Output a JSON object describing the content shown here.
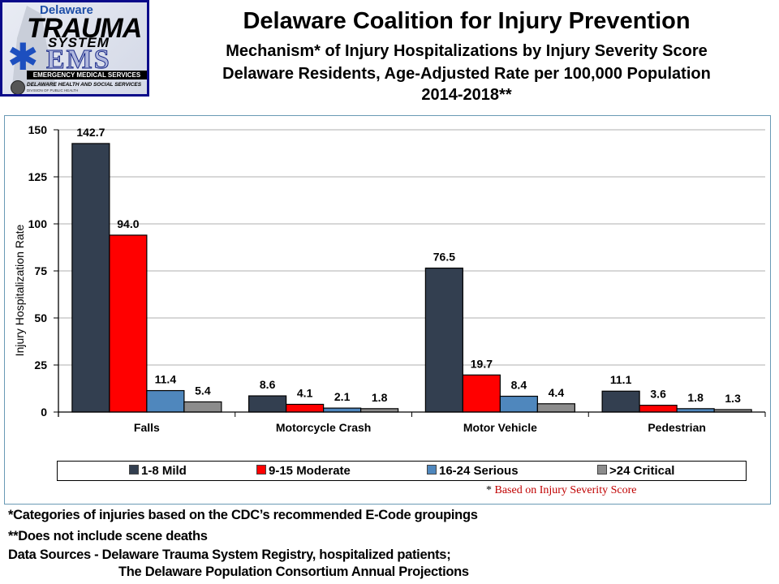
{
  "logo": {
    "line1": "Delaware",
    "line2": "TRAUMA",
    "line3": "SYSTEM",
    "line4": "EMS",
    "line5": "EMERGENCY MEDICAL SERVICES",
    "line6": "DELAWARE HEALTH AND SOCIAL SERVICES",
    "line7": "DIVISION OF PUBLIC HEALTH"
  },
  "header": {
    "title": "Delaware Coalition for Injury Prevention",
    "subtitle1": "Mechanism* of Injury Hospitalizations by Injury Severity Score",
    "subtitle2": "Delaware Residents, Age-Adjusted Rate per 100,000 Population",
    "subtitle3": "2014-2018**"
  },
  "chart_data": {
    "type": "bar",
    "title": "Mechanism* of Injury Hospitalizations by Injury Severity Score",
    "xlabel": "",
    "ylabel": "Injury Hospitalization Rate",
    "ylim": [
      0,
      150
    ],
    "yticks": [
      0,
      25,
      50,
      75,
      100,
      125,
      150
    ],
    "grid": true,
    "legend_position": "bottom",
    "categories": [
      "Falls",
      "Motorcycle Crash",
      "Motor Vehicle",
      "Pedestrian"
    ],
    "series": [
      {
        "name": "1-8 Mild",
        "color": "#333f50",
        "values": [
          142.7,
          8.6,
          76.5,
          11.1
        ],
        "labels": [
          "142.7",
          "8.6",
          "76.5",
          "11.1"
        ]
      },
      {
        "name": "9-15 Moderate",
        "color": "#ff0000",
        "values": [
          94.0,
          4.1,
          19.7,
          3.6
        ],
        "labels": [
          "94.0",
          "4.1",
          "19.7",
          "3.6"
        ]
      },
      {
        "name": "16-24 Serious",
        "color": "#4f87bd",
        "values": [
          11.4,
          2.1,
          8.4,
          1.8
        ],
        "labels": [
          "11.4",
          "2.1",
          "8.4",
          "1.8"
        ]
      },
      {
        "name": ">24 Critical",
        "color": "#8c8c8c",
        "values": [
          5.4,
          1.8,
          4.4,
          1.3
        ],
        "labels": [
          "5.4",
          "1.8",
          "4.4",
          "1.3"
        ]
      }
    ],
    "note": "Based on Injury  Severity  Score",
    "note_marker": "*"
  },
  "footnotes": {
    "line1": "*Categories of injuries based on the CDC’s recommended E-Code groupings",
    "line2": "**Does not include scene deaths",
    "line3": "Data Sources - Delaware Trauma System Registry, hospitalized patients;",
    "line4": "The Delaware Population Consortium Annual Projections"
  }
}
